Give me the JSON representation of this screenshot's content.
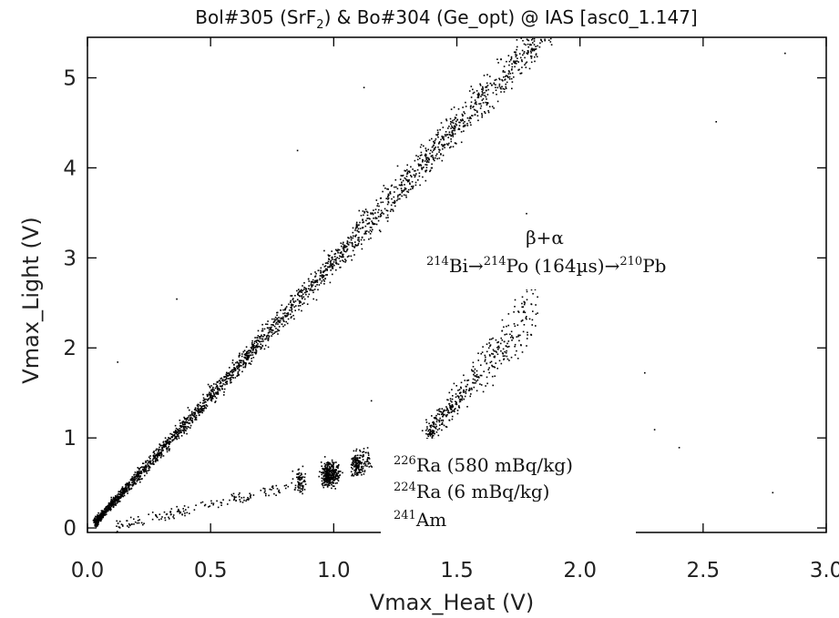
{
  "chart_data": {
    "type": "scatter",
    "title": {
      "pre": "Bol#305 (SrF",
      "sub": "2",
      "post": ") & Bo#304 (Ge_opt) @ IAS [asc0_1.147]"
    },
    "xlabel": "Vmax_Heat (V)",
    "ylabel": "Vmax_Light (V)",
    "xlim": [
      0.0,
      3.0
    ],
    "ylim": [
      -0.05,
      5.45
    ],
    "xticks": [
      "0.0",
      "0.5",
      "1.0",
      "1.5",
      "2.0",
      "2.5",
      "3.0"
    ],
    "yticks": [
      "0",
      "1",
      "2",
      "3",
      "4",
      "5"
    ],
    "grid": false,
    "marker_color": "#000000",
    "series": [
      {
        "id": "beta-gamma-band",
        "x_range": [
          0.03,
          2.0
        ],
        "slope": 3.0,
        "intercept": -0.02,
        "points": 2600
      },
      {
        "id": "bipo-cluster",
        "x_range": [
          1.38,
          1.82
        ],
        "y_at_start": 1.05,
        "slope": 3.2,
        "points": 420
      },
      {
        "id": "alpha-tail",
        "x_range": [
          0.1,
          0.85
        ],
        "slope": 0.7,
        "points": 160
      },
      {
        "id": "alpha-peaks",
        "peaks": [
          {
            "x": 0.86,
            "y": 0.52,
            "n": 70
          },
          {
            "x": 0.97,
            "y": 0.6,
            "n": 200
          },
          {
            "x": 1.0,
            "y": 0.62,
            "n": 120
          },
          {
            "x": 1.09,
            "y": 0.72,
            "n": 120
          },
          {
            "x": 1.13,
            "y": 0.76,
            "n": 40
          }
        ]
      },
      {
        "id": "outliers",
        "points": [
          [
            0.12,
            1.85
          ],
          [
            1.15,
            1.42
          ],
          [
            2.26,
            1.73
          ],
          [
            2.55,
            4.52
          ],
          [
            2.83,
            5.28
          ],
          [
            1.12,
            4.9
          ],
          [
            2.4,
            0.9
          ],
          [
            0.36,
            2.55
          ],
          [
            2.78,
            0.4
          ],
          [
            0.6,
            0.35
          ],
          [
            2.3,
            1.1
          ],
          [
            1.78,
            3.5
          ],
          [
            0.85,
            4.2
          ],
          [
            2.15,
            2.8
          ],
          [
            1.62,
            4.95
          ]
        ]
      }
    ],
    "annotations": {
      "bipo_decay": {
        "top": "β+α",
        "iso1": "214",
        "el1": "Bi→",
        "iso2": "214",
        "el2": "Po (164µs)→",
        "iso3": "210",
        "el3": "Pb"
      },
      "ra226": {
        "iso": "226",
        "text": "Ra (580 mBq/kg)"
      },
      "ra224": {
        "iso": "224",
        "text": "Ra (6 mBq/kg)"
      },
      "am241": {
        "iso": "241",
        "text": "Am"
      }
    }
  }
}
